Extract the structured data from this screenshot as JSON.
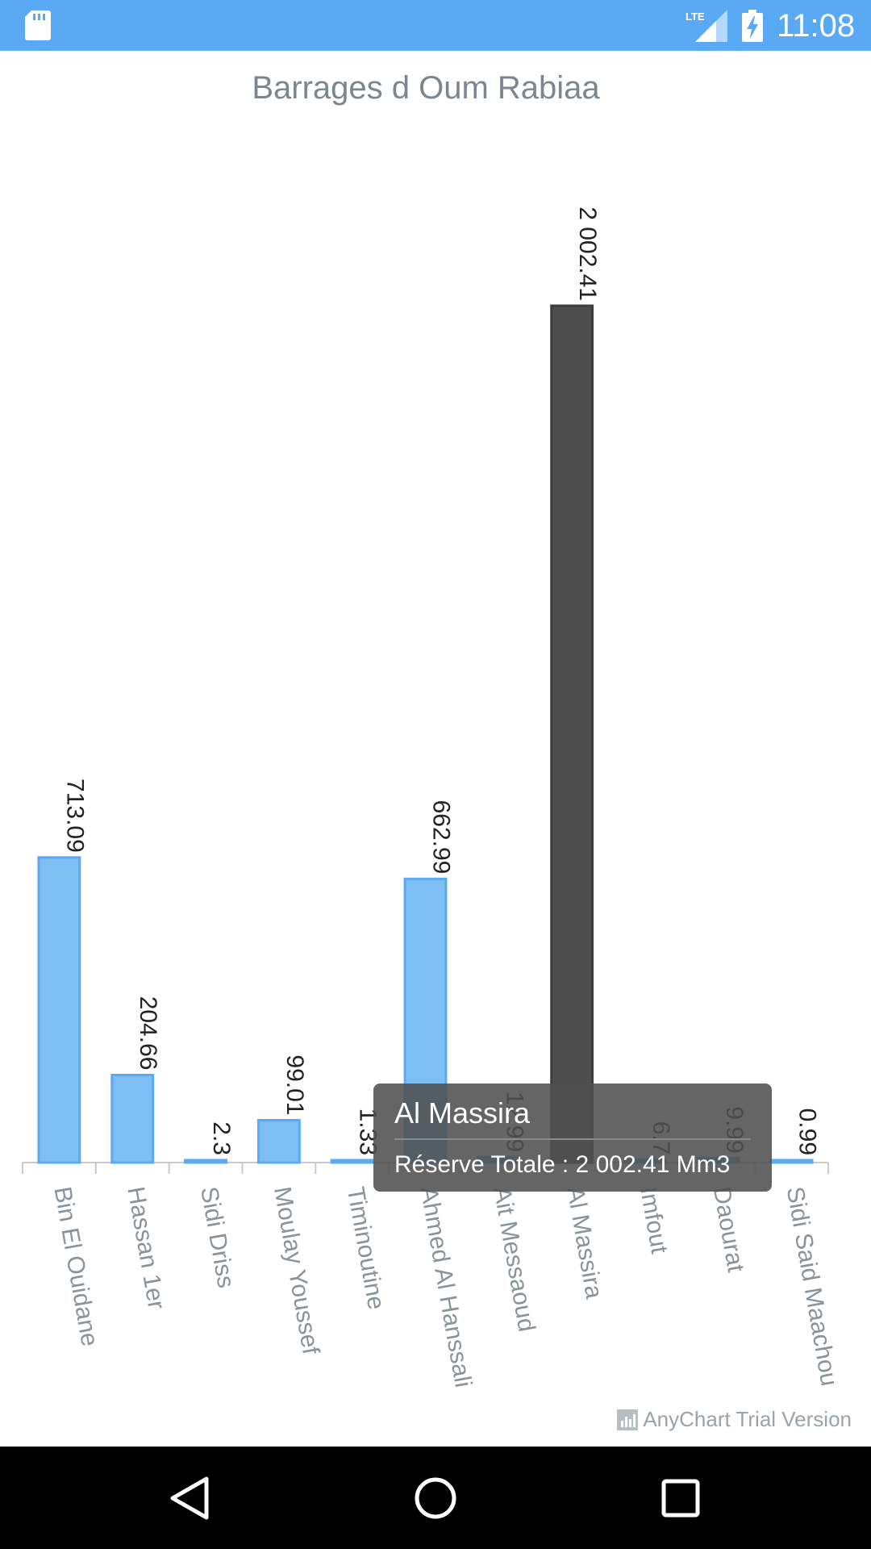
{
  "status_bar": {
    "network": "LTE",
    "time": "11:08",
    "icons": [
      "sd-card-icon",
      "lte-signal-icon",
      "battery-charging-icon"
    ]
  },
  "chart_title": "Barrages d Oum Rabiaa",
  "tooltip": {
    "title": "Al Massira",
    "body": "Réserve Totale : 2 002.41 Mm3"
  },
  "watermark": "AnyChart Trial Version",
  "colors": {
    "bar": "#7dbef5",
    "bar_stroke": "#5aa9f5",
    "bar_selected": "#4d4d4d",
    "axis": "#c9c9c9",
    "label": "#8a9399"
  },
  "nav": [
    "back-icon",
    "home-icon",
    "recents-icon"
  ],
  "chart_data": {
    "type": "bar",
    "title": "Barrages d Oum Rabiaa",
    "xlabel": "",
    "ylabel": "",
    "categories": [
      "Bin El Ouidane",
      "Hassan 1er",
      "Sidi Driss",
      "Moulay Youssef",
      "Timinoutine",
      "Ahmed Al Hanssali",
      "Ait Messaoud",
      "Al Massira",
      "Imfout",
      "Daourat",
      "Sidi Said Maachou"
    ],
    "values": [
      713.09,
      204.66,
      2.3,
      99.01,
      1.33,
      662.99,
      12.99,
      2002.41,
      6.7,
      9.99,
      0.99
    ],
    "labels": [
      "713.09",
      "204.66",
      "2.3",
      "99.01",
      "1.33",
      "662.99",
      "12.99",
      "2 002.41",
      "6.7",
      "9.99",
      "0.99"
    ],
    "selected": "Al Massira",
    "ylim": [
      0,
      2002.41
    ],
    "grid": false,
    "legend": "none"
  }
}
